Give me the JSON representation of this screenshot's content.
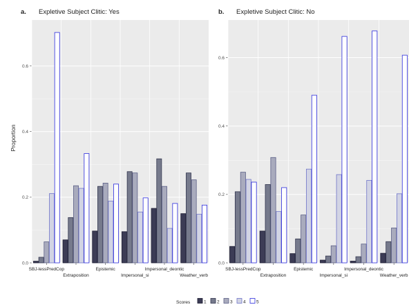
{
  "chart_data": {
    "type": "bar",
    "ylabel": "Proportion",
    "xlabel": "",
    "grid": true,
    "legend_position": "bottom",
    "categories": [
      "SBJ-lessPredCop",
      "Extraposition",
      "Epistemic",
      "Impersonal_si",
      "Impersonal_deontic",
      "Weather_verb"
    ],
    "category_label_rows": [
      0,
      1,
      0,
      1,
      0,
      1
    ],
    "legend": {
      "title": "Scores",
      "labels": [
        "1",
        "2",
        "3",
        "4",
        "5"
      ],
      "fills": [
        "#3c3c55",
        "#767a8c",
        "#a9abbd",
        "#d2d4e4",
        "#ffffff"
      ]
    },
    "panels": [
      {
        "tag": "a.",
        "title": "Expletive Subject Clitic: Yes",
        "ylim": [
          0,
          0.74
        ],
        "yticks": [
          0.0,
          0.2,
          0.4,
          0.6
        ],
        "tick_labels": [
          "0.0",
          "0.2",
          "0.4",
          "0.6"
        ],
        "series": [
          {
            "name": "1",
            "values": [
              0.005,
              0.07,
              0.097,
              0.095,
              0.166,
              0.15
            ]
          },
          {
            "name": "2",
            "values": [
              0.017,
              0.138,
              0.233,
              0.278,
              0.317,
              0.274
            ]
          },
          {
            "name": "3",
            "values": [
              0.064,
              0.235,
              0.243,
              0.274,
              0.233,
              0.253
            ]
          },
          {
            "name": "4",
            "values": [
              0.211,
              0.227,
              0.188,
              0.155,
              0.105,
              0.148
            ]
          },
          {
            "name": "5",
            "values": [
              0.702,
              0.333,
              0.24,
              0.198,
              0.181,
              0.176
            ]
          }
        ]
      },
      {
        "tag": "b.",
        "title": "Expletive Subject Clitic: No",
        "ylim": [
          0,
          0.71
        ],
        "yticks": [
          0.0,
          0.2,
          0.4,
          0.6
        ],
        "tick_labels": [
          "0.0",
          "0.2",
          "0.4",
          "0.6"
        ],
        "series": [
          {
            "name": "1",
            "values": [
              0.048,
              0.093,
              0.027,
              0.008,
              0.005,
              0.028
            ]
          },
          {
            "name": "2",
            "values": [
              0.208,
              0.229,
              0.07,
              0.02,
              0.018,
              0.062
            ]
          },
          {
            "name": "3",
            "values": [
              0.265,
              0.308,
              0.14,
              0.05,
              0.055,
              0.102
            ]
          },
          {
            "name": "4",
            "values": [
              0.244,
              0.15,
              0.274,
              0.258,
              0.241,
              0.202
            ]
          },
          {
            "name": "5",
            "values": [
              0.236,
              0.22,
              0.49,
              0.662,
              0.678,
              0.607
            ]
          }
        ]
      }
    ]
  }
}
